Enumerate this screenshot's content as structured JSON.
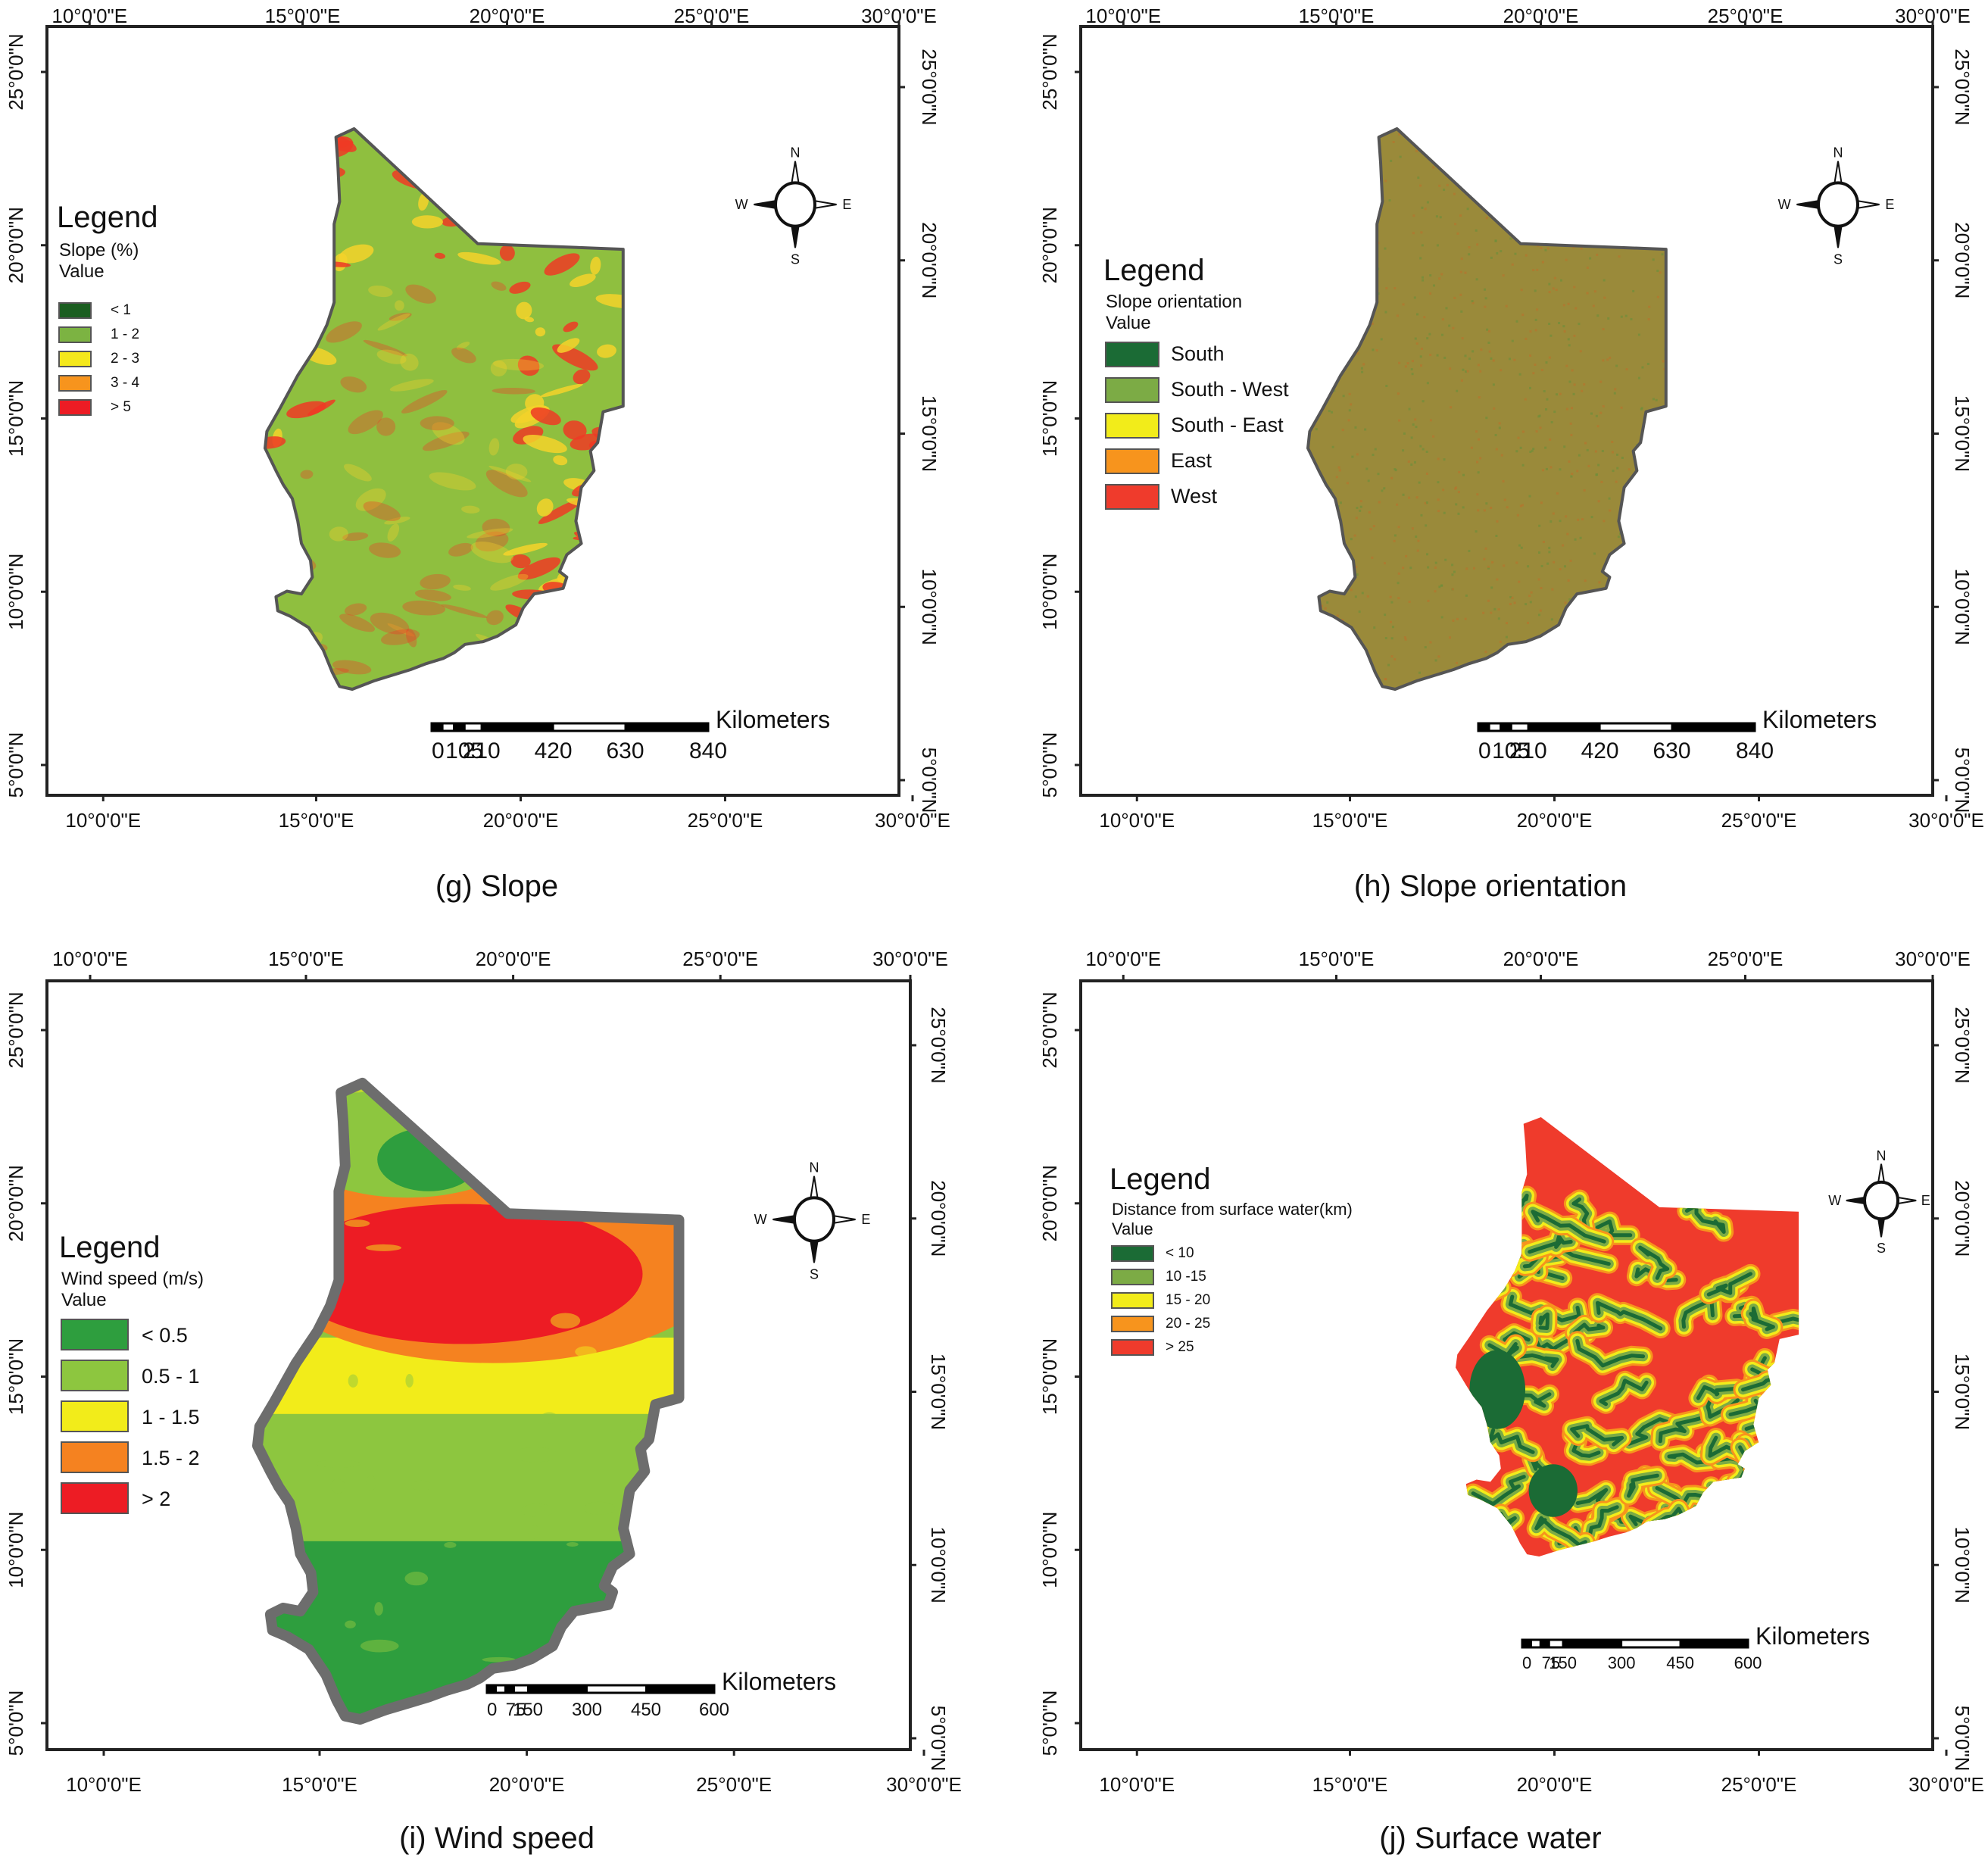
{
  "panels": [
    {
      "id": "g",
      "caption": "(g) Slope",
      "axes": {
        "top_lon": [
          "10°0'0\"E",
          "15°0'0\"E",
          "20°0'0\"E",
          "25°0'0\"E",
          "30°0'0\"E"
        ],
        "bottom_lon": [
          "10°0'0\"E",
          "15°0'0\"E",
          "20°0'0\"E",
          "25°0'0\"E",
          "30°0'0\"E"
        ],
        "lat": [
          "25°0'0\"N",
          "20°0'0\"N",
          "15°0'0\"N",
          "10°0'0\"N",
          "5°0'0\"N"
        ]
      },
      "legend": {
        "title": "Legend",
        "subtitle": "Slope (%)",
        "value_label": "Value",
        "items": [
          {
            "label": "< 1",
            "color": "#1b5e20"
          },
          {
            "label": "1 - 2",
            "color": "#7cb342"
          },
          {
            "label": "2 - 3",
            "color": "#f4e81c"
          },
          {
            "label": "3 - 4",
            "color": "#f7941d"
          },
          {
            "label": "> 5",
            "color": "#ed1c24"
          }
        ]
      },
      "map_colors": {
        "base": "#8fbf3f",
        "accent1": "#ee3a24",
        "accent2": "#f5d22a"
      },
      "compass": {
        "n": "N",
        "s": "S",
        "e": "E",
        "w": "W"
      },
      "scale": {
        "unit": "Kilometers",
        "ticks": [
          "0",
          "105",
          "210",
          "420",
          "630",
          "840"
        ]
      }
    },
    {
      "id": "h",
      "caption": "(h) Slope orientation",
      "axes": {
        "top_lon": [
          "10°0'0\"E",
          "15°0'0\"E",
          "20°0'0\"E",
          "25°0'0\"E",
          "30°0'0\"E"
        ],
        "bottom_lon": [
          "10°0'0\"E",
          "15°0'0\"E",
          "20°0'0\"E",
          "25°0'0\"E",
          "30°0'0\"E"
        ],
        "lat": [
          "25°0'0\"N",
          "20°0'0\"N",
          "15°0'0\"N",
          "10°0'0\"N",
          "5°0'0\"N"
        ]
      },
      "legend": {
        "title": "Legend",
        "subtitle": "Slope orientation",
        "value_label": "Value",
        "items": [
          {
            "label": "South",
            "color": "#1b6b35"
          },
          {
            "label": "South - West",
            "color": "#7cab45"
          },
          {
            "label": "South - East",
            "color": "#f2ec1a"
          },
          {
            "label": "East",
            "color": "#f7941d"
          },
          {
            "label": "West",
            "color": "#ef3b2c"
          }
        ]
      },
      "map_colors": {
        "base": "#9a8a3a",
        "accent1": "#6f8f3a",
        "accent2": "#b5752e"
      },
      "compass": {
        "n": "N",
        "s": "S",
        "e": "E",
        "w": "W"
      },
      "scale": {
        "unit": "Kilometers",
        "ticks": [
          "0",
          "105",
          "210",
          "420",
          "630",
          "840"
        ]
      }
    },
    {
      "id": "i",
      "caption": "(i) Wind speed",
      "axes": {
        "top_lon": [
          "10°0'0\"E",
          "15°0'0\"E",
          "20°0'0\"E",
          "25°0'0\"E",
          "30°0'0\"E"
        ],
        "bottom_lon": [
          "10°0'0\"E",
          "15°0'0\"E",
          "20°0'0\"E",
          "25°0'0\"E",
          "30°0'0\"E"
        ],
        "lat": [
          "25°0'0\"N",
          "20°0'0\"N",
          "15°0'0\"N",
          "10°0'0\"N",
          "5°0'0\"N"
        ]
      },
      "legend": {
        "title": "Legend",
        "subtitle": "Wind speed (m/s)",
        "value_label": "Value",
        "items": [
          {
            "label": "< 0.5",
            "color": "#2e9e3e"
          },
          {
            "label": "0.5 - 1",
            "color": "#8dc63f"
          },
          {
            "label": "1 -  1.5",
            "color": "#f2ec1a"
          },
          {
            "label": "1.5 - 2",
            "color": "#f58220"
          },
          {
            "label": "> 2",
            "color": "#ed1c24"
          }
        ]
      },
      "map_colors": {
        "base": "#8dc63f",
        "accent1": "#ed1c24",
        "accent2": "#f2ec1a"
      },
      "compass": {
        "n": "N",
        "s": "S",
        "e": "E",
        "w": "W"
      },
      "scale": {
        "unit": "Kilometers",
        "ticks": [
          "0",
          "75",
          "150",
          "300",
          "450",
          "600"
        ]
      }
    },
    {
      "id": "j",
      "caption": "(j) Surface water",
      "axes": {
        "top_lon": [
          "10°0'0\"E",
          "15°0'0\"E",
          "20°0'0\"E",
          "25°0'0\"E",
          "30°0'0\"E"
        ],
        "bottom_lon": [
          "10°0'0\"E",
          "15°0'0\"E",
          "20°0'0\"E",
          "25°0'0\"E",
          "30°0'0\"E"
        ],
        "lat": [
          "25°0'0\"N",
          "20°0'0\"N",
          "15°0'0\"N",
          "10°0'0\"N",
          "5°0'0\"N"
        ]
      },
      "legend": {
        "title": "Legend",
        "subtitle": "Distance from surface water(km)",
        "value_label": "Value",
        "items": [
          {
            "label": "< 10",
            "color": "#1b6b35"
          },
          {
            "label": "10 -15",
            "color": "#7cab45"
          },
          {
            "label": "15 - 20",
            "color": "#f2ec1a"
          },
          {
            "label": "20 - 25",
            "color": "#f7941d"
          },
          {
            "label": "> 25",
            "color": "#ef3b2c"
          }
        ]
      },
      "map_colors": {
        "base": "#ef3b2c",
        "accent1": "#1b6b35",
        "accent2": "#f2ec1a"
      },
      "compass": {
        "n": "N",
        "s": "S",
        "e": "E",
        "w": "W"
      },
      "scale": {
        "unit": "Kilometers",
        "ticks": [
          "0",
          "75",
          "150",
          "300",
          "450",
          "600"
        ]
      }
    }
  ]
}
